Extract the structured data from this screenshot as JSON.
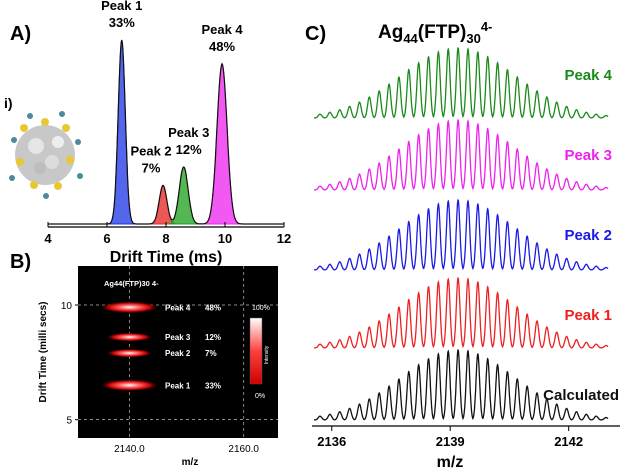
{
  "panels": {
    "a_label": "A)",
    "i_label": "i)",
    "b_label": "B)",
    "c_label": "C)"
  },
  "chart_data": [
    {
      "id": "A",
      "type": "line",
      "xlabel": "Drift Time (ms)",
      "ylabel": "",
      "xlim": [
        4,
        12
      ],
      "xticks": [
        "4",
        "6",
        "8",
        "10",
        "12"
      ],
      "peaks": [
        {
          "name": "Peak 1",
          "percent": "33%",
          "center": 6.5,
          "height": 1.0,
          "width": 0.12,
          "color": "#1a33e6"
        },
        {
          "name": "Peak 2",
          "percent": "7%",
          "center": 7.9,
          "height": 0.21,
          "width": 0.13,
          "color": "#e62020"
        },
        {
          "name": "Peak 3",
          "percent": "12%",
          "center": 8.6,
          "height": 0.31,
          "width": 0.15,
          "color": "#1aa01a"
        },
        {
          "name": "Peak 4",
          "percent": "48%",
          "center": 9.9,
          "height": 0.87,
          "width": 0.17,
          "color": "#ee22ee"
        }
      ]
    },
    {
      "id": "B",
      "type": "heatmap",
      "title": "Ag44(FTP)30 4-",
      "xlabel": "m/z",
      "ylabel": "Drift Time (milli secs)",
      "xlim": [
        2131,
        2166
      ],
      "ylim": [
        4.2,
        11.7
      ],
      "xticks": [
        "2140.0",
        "2160.0"
      ],
      "yticks": [
        "5",
        "10"
      ],
      "colorbar": {
        "label": "Intensity",
        "max": "100%",
        "min": "0%"
      },
      "spots": [
        {
          "name": "Peak 4",
          "percent": "48%",
          "mz": 2140,
          "dt": 9.9
        },
        {
          "name": "Peak 3",
          "percent": "12%",
          "mz": 2140,
          "dt": 8.6
        },
        {
          "name": "Peak 2",
          "percent": "7%",
          "mz": 2140,
          "dt": 7.9
        },
        {
          "name": "Peak 1",
          "percent": "33%",
          "mz": 2140,
          "dt": 6.5
        }
      ]
    },
    {
      "id": "C",
      "type": "line",
      "title": "Ag44(FTP)30 4-",
      "xlabel": "m/z",
      "xlim": [
        2135.5,
        2143.3
      ],
      "xticks": [
        "2136",
        "2139",
        "2142"
      ],
      "center": 2139.2,
      "spacing": 0.25,
      "series": [
        {
          "name": "Peak 4",
          "color": "#1a8a1a"
        },
        {
          "name": "Peak 3",
          "color": "#ee22ee"
        },
        {
          "name": "Peak 2",
          "color": "#1a1ae6"
        },
        {
          "name": "Peak 1",
          "color": "#ee2020"
        },
        {
          "name": "Calculated",
          "color": "#111111"
        }
      ]
    }
  ]
}
